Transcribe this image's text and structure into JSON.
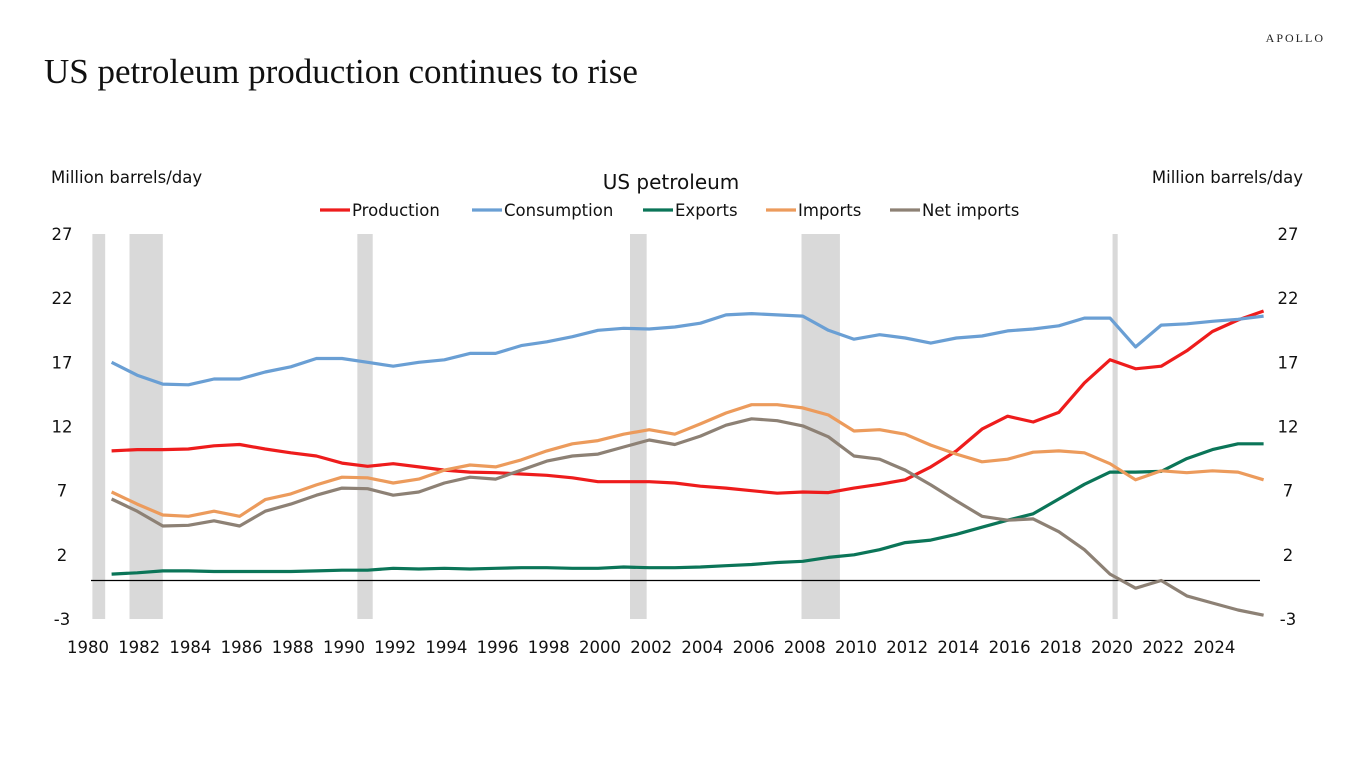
{
  "brand": "APOLLO",
  "page_title": "US petroleum production continues to rise",
  "chart_data": {
    "type": "line",
    "title": "US petroleum",
    "ylabel_left": "Million barrels/day",
    "ylabel_right": "Million barrels/day",
    "ylim": [
      -3,
      27
    ],
    "yticks": [
      27,
      22,
      17,
      12,
      7,
      2,
      -3
    ],
    "xlim": [
      1980,
      2026
    ],
    "xticks": [
      1980,
      1982,
      1984,
      1986,
      1988,
      1990,
      1992,
      1994,
      1996,
      1998,
      2000,
      2002,
      2004,
      2006,
      2008,
      2010,
      2012,
      2014,
      2016,
      2018,
      2020,
      2022,
      2024
    ],
    "legend_position": "top",
    "grid": false,
    "x": [
      1981,
      1982,
      1983,
      1984,
      1985,
      1986,
      1987,
      1988,
      1989,
      1990,
      1991,
      1992,
      1993,
      1994,
      1995,
      1996,
      1997,
      1998,
      1999,
      2000,
      2001,
      2002,
      2003,
      2004,
      2005,
      2006,
      2007,
      2008,
      2009,
      2010,
      2011,
      2012,
      2013,
      2014,
      2015,
      2016,
      2017,
      2018,
      2019,
      2020,
      2021,
      2022,
      2023,
      2024,
      2025,
      2026
    ],
    "series": [
      {
        "name": "Production",
        "color": "#ee1c1c",
        "values": [
          10.1,
          10.2,
          10.2,
          10.25,
          10.5,
          10.6,
          10.25,
          9.95,
          9.7,
          9.15,
          8.9,
          9.1,
          8.85,
          8.6,
          8.45,
          8.4,
          8.3,
          8.2,
          8.0,
          7.7,
          7.7,
          7.7,
          7.6,
          7.35,
          7.2,
          7.0,
          6.8,
          6.9,
          6.85,
          7.2,
          7.5,
          7.85,
          8.85,
          10.1,
          11.8,
          12.8,
          12.35,
          13.1,
          15.4,
          17.2,
          16.5,
          16.7,
          17.9,
          19.4,
          20.3,
          21.0
        ]
      },
      {
        "name": "Consumption",
        "color": "#6a9fd4",
        "values": [
          17.0,
          16.0,
          15.3,
          15.25,
          15.7,
          15.7,
          16.25,
          16.65,
          17.3,
          17.3,
          17.0,
          16.7,
          17.0,
          17.2,
          17.7,
          17.7,
          18.3,
          18.6,
          19.0,
          19.5,
          19.65,
          19.6,
          19.75,
          20.05,
          20.7,
          20.8,
          20.7,
          20.6,
          19.5,
          18.8,
          19.15,
          18.9,
          18.5,
          18.9,
          19.05,
          19.45,
          19.6,
          19.85,
          20.45,
          20.45,
          18.2,
          19.9,
          20.0,
          20.2,
          20.35,
          20.6
        ]
      },
      {
        "name": "Exports",
        "color": "#0b7558",
        "values": [
          0.5,
          0.6,
          0.75,
          0.75,
          0.7,
          0.7,
          0.7,
          0.7,
          0.75,
          0.8,
          0.8,
          0.95,
          0.9,
          0.95,
          0.9,
          0.95,
          1.0,
          1.0,
          0.95,
          0.95,
          1.05,
          1.0,
          1.0,
          1.05,
          1.15,
          1.25,
          1.4,
          1.5,
          1.8,
          2.0,
          2.4,
          2.95,
          3.15,
          3.6,
          4.15,
          4.7,
          5.2,
          6.35,
          7.5,
          8.45,
          8.45,
          8.5,
          9.5,
          10.2,
          10.65,
          10.65
        ]
      },
      {
        "name": "Imports",
        "color": "#ec9b5c",
        "values": [
          6.9,
          5.95,
          5.1,
          5.0,
          5.4,
          5.0,
          6.3,
          6.75,
          7.45,
          8.05,
          8.0,
          7.6,
          7.9,
          8.6,
          9.0,
          8.85,
          9.4,
          10.1,
          10.65,
          10.9,
          11.4,
          11.75,
          11.4,
          12.2,
          13.05,
          13.7,
          13.7,
          13.45,
          12.9,
          11.65,
          11.75,
          11.4,
          10.55,
          9.85,
          9.25,
          9.45,
          10.0,
          10.1,
          9.95,
          9.1,
          7.85,
          8.55,
          8.4,
          8.55,
          8.45,
          7.85
        ]
      },
      {
        "name": "Net imports",
        "color": "#8d8175",
        "values": [
          6.35,
          5.4,
          4.25,
          4.3,
          4.65,
          4.25,
          5.4,
          5.95,
          6.65,
          7.2,
          7.15,
          6.65,
          6.9,
          7.6,
          8.05,
          7.9,
          8.6,
          9.3,
          9.7,
          9.85,
          10.4,
          10.95,
          10.6,
          11.25,
          12.1,
          12.6,
          12.45,
          12.05,
          11.2,
          9.7,
          9.45,
          8.6,
          7.45,
          6.2,
          5.0,
          4.7,
          4.8,
          3.8,
          2.4,
          0.5,
          -0.6,
          0.0,
          -1.2,
          -1.75,
          -2.3,
          -2.7
        ]
      }
    ],
    "recession_shading": [
      [
        1980.25,
        1980.75
      ],
      [
        1981.7,
        1983.0
      ],
      [
        1990.6,
        1991.2
      ],
      [
        2001.25,
        2001.9
      ],
      [
        2007.95,
        2009.45
      ],
      [
        2020.1,
        2020.3
      ]
    ],
    "recession_color": "#d9d9d9"
  }
}
